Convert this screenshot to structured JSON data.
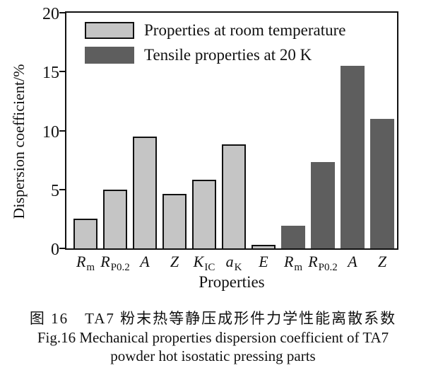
{
  "chart_data": {
    "type": "bar",
    "title": "",
    "xlabel": "Properties",
    "ylabel": "Dispersion coefficient/%",
    "ylim": [
      0,
      20
    ],
    "yticks": [
      0,
      5,
      10,
      15,
      20
    ],
    "grid": false,
    "legend_position": "upper-left-inside",
    "categories": [
      {
        "key": "Rm-rt",
        "main": "R",
        "sub": "m"
      },
      {
        "key": "Rp02-rt",
        "main": "R",
        "sub": "P0.2"
      },
      {
        "key": "A-rt",
        "main": "A",
        "sub": ""
      },
      {
        "key": "Z-rt",
        "main": "Z",
        "sub": ""
      },
      {
        "key": "Kic-rt",
        "main": "K",
        "sub": "IC"
      },
      {
        "key": "aK-rt",
        "main": "a",
        "sub": "K"
      },
      {
        "key": "E-rt",
        "main": "E",
        "sub": ""
      },
      {
        "key": "Rm-20k",
        "main": "R",
        "sub": "m"
      },
      {
        "key": "Rp02-20k",
        "main": "R",
        "sub": "P0.2"
      },
      {
        "key": "A-20k",
        "main": "A",
        "sub": ""
      },
      {
        "key": "Z-20k",
        "main": "Z",
        "sub": ""
      }
    ],
    "series": [
      {
        "key": "room-temp",
        "name": "Properties at room temperature",
        "color": "#c5c5c5",
        "border_color": "#111111",
        "values": [
          2.5,
          5.0,
          9.5,
          4.6,
          5.8,
          8.8,
          0.3,
          null,
          null,
          null,
          null
        ]
      },
      {
        "key": "20k",
        "name": "Tensile properties at 20 K",
        "color": "#5e5e5e",
        "border_color": null,
        "values": [
          null,
          null,
          null,
          null,
          null,
          null,
          null,
          1.9,
          7.3,
          15.5,
          11.0
        ]
      }
    ]
  },
  "caption": {
    "line1_cn": "图 16　TA7 粉末热等静压成形件力学性能离散系数",
    "line2_en": "Fig.16 Mechanical properties dispersion coefficient of TA7",
    "line3_en": "powder hot isostatic pressing parts"
  },
  "colors": {
    "light_bar": "#c5c5c5",
    "dark_bar": "#5e5e5e",
    "axis": "#111111",
    "background": "#ffffff"
  }
}
